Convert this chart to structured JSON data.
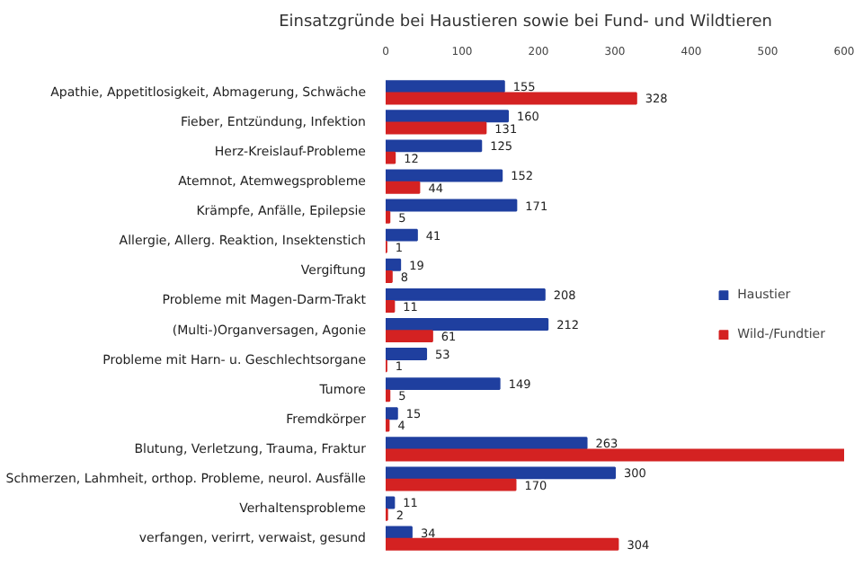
{
  "chart_data": {
    "type": "bar",
    "orientation": "horizontal",
    "title": "Einsatzgründe bei Haustieren sowie bei Fund- und Wildtieren",
    "categories": [
      "Apathie, Appetitlosigkeit, Abmagerung, Schwäche",
      "Fieber, Entzündung, Infektion",
      "Herz-Kreislauf-Probleme",
      "Atemnot, Atemwegsprobleme",
      "Krämpfe, Anfälle, Epilepsie",
      "Allergie, Allerg. Reaktion, Insektenstich",
      "Vergiftung",
      "Probleme mit Magen-Darm-Trakt",
      "(Multi-)Organversagen, Agonie",
      "Probleme mit Harn- u. Geschlechtsorgane",
      "Tumore",
      "Fremdkörper",
      "Blutung, Verletzung, Trauma, Fraktur",
      "Schmerzen, Lahmheit, orthop. Probleme, neurol. Ausfälle",
      "Verhaltensprobleme",
      "verfangen, verirrt, verwaist, gesund"
    ],
    "series": [
      {
        "name": "Haustier",
        "color": "#1f3f9f",
        "values": [
          155,
          160,
          125,
          152,
          171,
          41,
          19,
          208,
          212,
          53,
          149,
          15,
          263,
          300,
          11,
          34
        ],
        "value_labels": [
          "155",
          "160",
          "125",
          "152",
          "171",
          "41",
          "19",
          "208",
          "212",
          "53",
          "149",
          "15",
          "263",
          "300",
          "11",
          "34"
        ]
      },
      {
        "name": "Wild-/Fundtier",
        "color": "#d42222",
        "values": [
          328,
          131,
          12,
          44,
          5,
          1,
          8,
          11,
          61,
          1,
          5,
          4,
          600,
          170,
          2,
          304
        ],
        "value_labels": [
          "328",
          "131",
          "12",
          "44",
          "5",
          "1",
          "8",
          "11",
          "61",
          "1",
          "5",
          "4",
          null,
          "170",
          "2",
          "304"
        ]
      }
    ],
    "xlim": [
      0,
      600
    ],
    "xticks": [
      0,
      100,
      200,
      300,
      400,
      500,
      600
    ],
    "grid": false,
    "legend": "right"
  }
}
